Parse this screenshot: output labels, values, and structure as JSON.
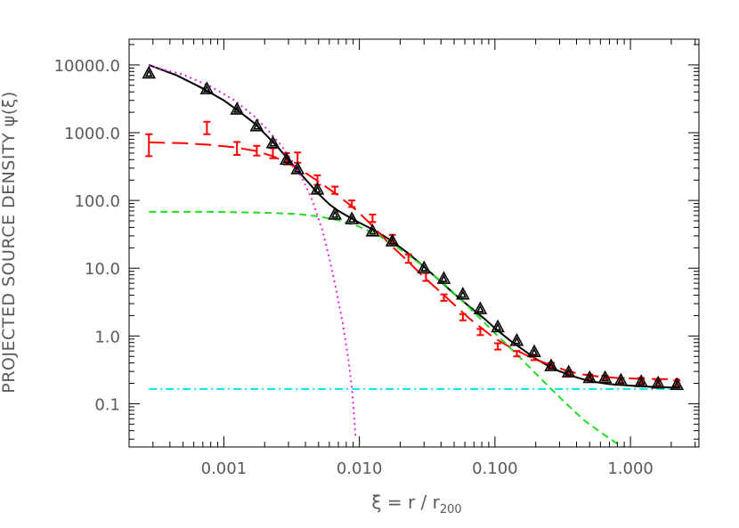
{
  "chart_data": {
    "type": "scatter",
    "title": "",
    "xlabel": "ξ = r / r",
    "xlabel_sub": "200",
    "ylabel": "PROJECTED SOURCE DENSITY ψ(ξ)",
    "xscale": "log",
    "yscale": "log",
    "xlim": [
      0.0002,
      3.2
    ],
    "ylim": [
      0.023,
      24000
    ],
    "grid": false,
    "legend": "none",
    "x_ticks": [
      0.001,
      0.01,
      0.1,
      1.0
    ],
    "x_tick_labels": [
      "0.001",
      "0.010",
      "0.100",
      "1.000"
    ],
    "y_ticks": [
      0.1,
      1,
      10,
      100,
      1000,
      10000
    ],
    "y_tick_labels": [
      "0.1",
      "1.0",
      "10.0",
      "100.0",
      "1000.0",
      "10000.0"
    ],
    "series": [
      {
        "kind": "points",
        "marker": "triangle",
        "color": "#000000",
        "x": [
          0.00028,
          0.00075,
          0.00125,
          0.00175,
          0.0023,
          0.0029,
          0.0035,
          0.0049,
          0.0066,
          0.0088,
          0.0125,
          0.0175,
          0.03,
          0.042,
          0.058,
          0.078,
          0.105,
          0.145,
          0.195,
          0.26,
          0.35,
          0.5,
          0.65,
          0.85,
          1.2,
          1.6,
          2.2
        ],
        "y": [
          7500,
          4400,
          2200,
          1250,
          700,
          400,
          290,
          145,
          62,
          53,
          35,
          25,
          10,
          7.0,
          4.1,
          2.5,
          1.35,
          0.85,
          0.58,
          0.36,
          0.29,
          0.24,
          0.24,
          0.22,
          0.21,
          0.2,
          0.19
        ]
      },
      {
        "kind": "points",
        "marker": "errorbar",
        "color": "#ff0000",
        "x": [
          0.00028,
          0.00075,
          0.00125,
          0.00175,
          0.0023,
          0.0029,
          0.0035,
          0.0049,
          0.0066,
          0.0088,
          0.0125,
          0.0175,
          0.023,
          0.031,
          0.042,
          0.058,
          0.078,
          0.105,
          0.145,
          0.195,
          0.26,
          0.35,
          0.5,
          0.65,
          0.85,
          1.2,
          1.6,
          2.2
        ],
        "y": [
          700,
          1200,
          600,
          550,
          500,
          420,
          430,
          200,
          140,
          90,
          55,
          27,
          14,
          7.5,
          3.7,
          1.9,
          1.15,
          0.7,
          0.55,
          0.48,
          0.37,
          0.28,
          0.25,
          0.24,
          0.22,
          0.22,
          0.2,
          0.2
        ],
        "yerr_low": [
          450,
          950,
          470,
          460,
          420,
          340,
          360,
          170,
          125,
          80,
          48,
          23,
          12,
          6.5,
          3.3,
          1.7,
          1.03,
          0.63,
          0.5,
          0.44,
          0.34,
          0.26,
          0.23,
          0.22,
          0.2,
          0.2,
          0.18,
          0.18
        ],
        "yerr_high": [
          950,
          1450,
          730,
          640,
          590,
          500,
          510,
          235,
          160,
          100,
          62,
          31,
          16,
          8.5,
          4.1,
          2.1,
          1.27,
          0.78,
          0.6,
          0.52,
          0.4,
          0.3,
          0.27,
          0.26,
          0.24,
          0.24,
          0.22,
          0.22
        ]
      },
      {
        "kind": "line",
        "style": "solid",
        "color": "#000000",
        "x": [
          0.00028,
          0.00045,
          0.0007,
          0.001,
          0.0013,
          0.0017,
          0.0021,
          0.0025,
          0.003,
          0.0036,
          0.0043,
          0.005,
          0.006,
          0.007,
          0.0085,
          0.01,
          0.013,
          0.017,
          0.023,
          0.03,
          0.04,
          0.05,
          0.065,
          0.085,
          0.1,
          0.13,
          0.17,
          0.2,
          0.25,
          0.3,
          0.4,
          0.5,
          0.7,
          1.0,
          1.4,
          2.0,
          2.3
        ],
        "y": [
          10000,
          7000,
          4500,
          3000,
          2050,
          1350,
          880,
          610,
          400,
          260,
          175,
          125,
          88,
          70,
          56,
          47,
          36,
          26,
          16.5,
          10.5,
          6.3,
          4.2,
          2.7,
          1.75,
          1.3,
          0.85,
          0.58,
          0.46,
          0.36,
          0.3,
          0.245,
          0.215,
          0.195,
          0.185,
          0.178,
          0.173,
          0.172
        ]
      },
      {
        "kind": "line",
        "style": "long-dash",
        "color": "#ff0000",
        "x": [
          0.00028,
          0.0005,
          0.0008,
          0.0012,
          0.0017,
          0.0023,
          0.003,
          0.004,
          0.005,
          0.007,
          0.0095,
          0.013,
          0.017,
          0.023,
          0.03,
          0.04,
          0.05,
          0.065,
          0.085,
          0.1,
          0.13,
          0.17,
          0.22,
          0.28,
          0.35,
          0.45,
          0.6,
          0.8,
          1.1,
          1.5,
          2.0,
          2.3
        ],
        "y": [
          720,
          700,
          660,
          610,
          540,
          450,
          350,
          255,
          190,
          118,
          72,
          39,
          22,
          12.5,
          7.3,
          4.4,
          2.9,
          1.8,
          1.18,
          0.92,
          0.68,
          0.52,
          0.42,
          0.35,
          0.3,
          0.27,
          0.25,
          0.24,
          0.235,
          0.232,
          0.23,
          0.23
        ]
      },
      {
        "kind": "line",
        "style": "dash",
        "color": "#22dd22",
        "x": [
          0.00028,
          0.0008,
          0.002,
          0.0035,
          0.005,
          0.007,
          0.01,
          0.014,
          0.02,
          0.03,
          0.045,
          0.065,
          0.1,
          0.15,
          0.22,
          0.32,
          0.45,
          0.6,
          0.75,
          0.9
        ],
        "y": [
          68,
          68,
          66,
          63,
          58,
          51,
          41,
          30,
          19,
          10.5,
          5.2,
          2.6,
          1.1,
          0.5,
          0.23,
          0.11,
          0.058,
          0.038,
          0.028,
          0.022
        ]
      },
      {
        "kind": "line",
        "style": "dot",
        "color": "#e61ee6",
        "x": [
          0.00028,
          0.0005,
          0.0008,
          0.0012,
          0.0017,
          0.0022,
          0.0027,
          0.0032,
          0.0038,
          0.0045,
          0.0053,
          0.006,
          0.0068,
          0.0076,
          0.0083,
          0.0089,
          0.0094
        ],
        "y": [
          9700,
          7200,
          4800,
          3000,
          1700,
          1000,
          620,
          380,
          210,
          100,
          38,
          14,
          4.5,
          1.4,
          0.45,
          0.14,
          0.03
        ]
      },
      {
        "kind": "line",
        "style": "dash-dot",
        "color": "#00e6e6",
        "x": [
          0.00028,
          2.3
        ],
        "y": [
          0.165,
          0.165
        ]
      }
    ]
  }
}
